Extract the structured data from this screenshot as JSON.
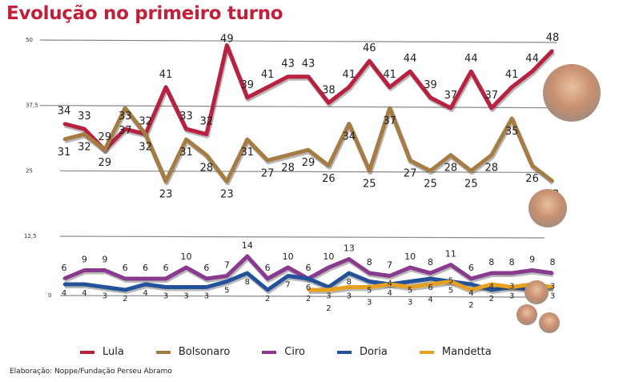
{
  "title": "Evolução no primeiro turno",
  "footer": "Elaboração: Noppe/Fundação Perseu Abramo",
  "chart_data": {
    "type": "line",
    "title": "Evolução no primeiro turno",
    "y_ticks": [
      "50",
      "37,5",
      "25",
      "12,5",
      "0"
    ],
    "ylim": [
      0,
      50
    ],
    "grid": true,
    "legend_placement": "bottom",
    "series": [
      {
        "name": "Lula",
        "color": "#b8213f",
        "values": [
          34,
          33,
          29,
          33,
          32,
          41,
          33,
          32,
          49,
          39,
          41,
          43,
          43,
          38,
          41,
          46,
          41,
          44,
          39,
          37,
          44,
          37,
          41,
          44,
          48
        ]
      },
      {
        "name": "Bolsonaro",
        "color": "#a67c45",
        "values": [
          31,
          32,
          29,
          37,
          32,
          23,
          31,
          28,
          23,
          31,
          27,
          28,
          29,
          26,
          34,
          25,
          37,
          27,
          25,
          28,
          25,
          28,
          35,
          26,
          23
        ]
      },
      {
        "name": "Ciro",
        "color": "#8a3a8e",
        "values": [
          6,
          9,
          9,
          6,
          6,
          6,
          10,
          6,
          7,
          14,
          6,
          10,
          6,
          10,
          13,
          8,
          7,
          10,
          8,
          11,
          6,
          8,
          8,
          9,
          8
        ]
      },
      {
        "name": "Doria",
        "color": "#24529a",
        "values": [
          4,
          4,
          3,
          2,
          4,
          3,
          3,
          3,
          5,
          8,
          2,
          7,
          6,
          3,
          8,
          5,
          4,
          5,
          6,
          5,
          4,
          2,
          3,
          2,
          3
        ]
      },
      {
        "name": "Mandetta",
        "color": "#e8a020",
        "values": [
          null,
          null,
          null,
          null,
          null,
          null,
          null,
          null,
          null,
          null,
          null,
          null,
          2,
          2,
          3,
          3,
          4,
          3,
          4,
          5,
          2,
          4,
          3,
          4,
          3
        ]
      }
    ]
  }
}
